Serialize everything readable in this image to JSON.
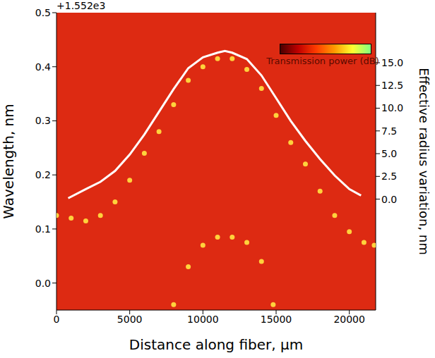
{
  "chart_data": {
    "type": "scatter",
    "x_label": "Distance along fiber, µm",
    "y_label": "Wavelength, nm",
    "y2_label": "Effective radius variation, nm",
    "y_offset": "+1.552e3",
    "colorbar": {
      "label": "Transmission power (dB)"
    },
    "xlim": [
      0,
      21800
    ],
    "xticks": [
      0,
      5000,
      10000,
      15000,
      20000
    ],
    "ylim": [
      -0.05,
      0.5
    ],
    "yticks": [
      {
        "value": 0.0,
        "label": "0.0"
      },
      0.1,
      0.2,
      0.3,
      0.4,
      0.5
    ],
    "y2lim": [
      -12.2,
      20.5
    ],
    "y2ticks": [
      {
        "value": 0,
        "label": "0.0"
      },
      2.5,
      {
        "value": 5,
        "label": "5.0"
      },
      7.5,
      {
        "value": 10,
        "label": "10.0"
      },
      12.5,
      {
        "value": 15,
        "label": "15.0"
      }
    ],
    "grid": false,
    "series": [
      {
        "type": "scatter",
        "marker": "circle",
        "color": "#ffd23c",
        "x": [
          0,
          1000,
          2000,
          3000,
          4000,
          5000,
          6000,
          7000,
          8000,
          9000,
          10000,
          11000,
          12000,
          13000,
          14000,
          15000,
          16000,
          17000,
          18000,
          19000,
          20000,
          21000,
          21700
        ],
        "values": [
          0.125,
          0.12,
          0.115,
          0.125,
          0.15,
          0.19,
          0.24,
          0.28,
          0.33,
          0.375,
          0.4,
          0.415,
          0.415,
          0.395,
          0.36,
          0.31,
          0.26,
          0.22,
          0.17,
          0.125,
          0.095,
          0.075,
          0.07
        ]
      },
      {
        "type": "scatter",
        "marker": "circle",
        "color": "#ffd23c",
        "x": [
          8000,
          9000,
          10000,
          11000,
          12000,
          13000,
          14000,
          14800
        ],
        "values": [
          -0.04,
          0.03,
          0.07,
          0.085,
          0.085,
          0.075,
          0.04,
          -0.04
        ]
      },
      {
        "type": "line",
        "line_style": "solid",
        "color": "#ffffff",
        "axis": "y2",
        "x": [
          800,
          2000,
          3000,
          4000,
          5000,
          6000,
          7000,
          8000,
          9000,
          10000,
          11000,
          11500,
          12000,
          13000,
          14000,
          15000,
          16000,
          17000,
          18000,
          19000,
          20000,
          20800
        ],
        "values": [
          0.1,
          1.1,
          1.9,
          3.1,
          4.9,
          7.1,
          9.6,
          12.1,
          14.4,
          15.6,
          16.1,
          16.3,
          16.1,
          15.4,
          13.6,
          11.1,
          8.6,
          6.4,
          4.4,
          2.6,
          1.1,
          0.4
        ]
      }
    ]
  }
}
